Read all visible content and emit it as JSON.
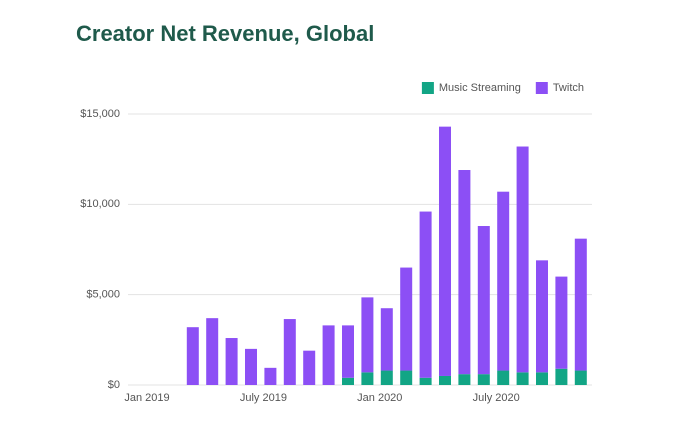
{
  "chart_data": {
    "type": "stacked_bar",
    "title": "Creator Net Revenue, Global",
    "categories": [
      "Jan 2019",
      null,
      null,
      null,
      null,
      null,
      "July 2019",
      null,
      null,
      null,
      null,
      null,
      "Jan 2020",
      null,
      null,
      null,
      null,
      null,
      "July 2020",
      null,
      null,
      null,
      null
    ],
    "series": [
      {
        "name": "Music Streaming",
        "color": "#12a585",
        "values": [
          null,
          null,
          0,
          0,
          0,
          0,
          0,
          0,
          0,
          0,
          400,
          700,
          800,
          800,
          400,
          500,
          600,
          600,
          800,
          700,
          700,
          900,
          800
        ]
      },
      {
        "name": "Twitch",
        "color": "#8c4ff5",
        "values": [
          null,
          null,
          3200,
          3700,
          2600,
          2000,
          950,
          3650,
          1900,
          3300,
          2900,
          4150,
          3450,
          5700,
          9200,
          13800,
          11300,
          8200,
          9900,
          12500,
          6200,
          5100,
          7300
        ]
      }
    ],
    "ylim": [
      0,
      15000
    ],
    "yticks": [
      {
        "value": 0,
        "label": "$0"
      },
      {
        "value": 5000,
        "label": "$5,000"
      },
      {
        "value": 10000,
        "label": "$10,000"
      },
      {
        "value": 15000,
        "label": "$15,000"
      }
    ],
    "grid": true,
    "legend": "top-right"
  }
}
